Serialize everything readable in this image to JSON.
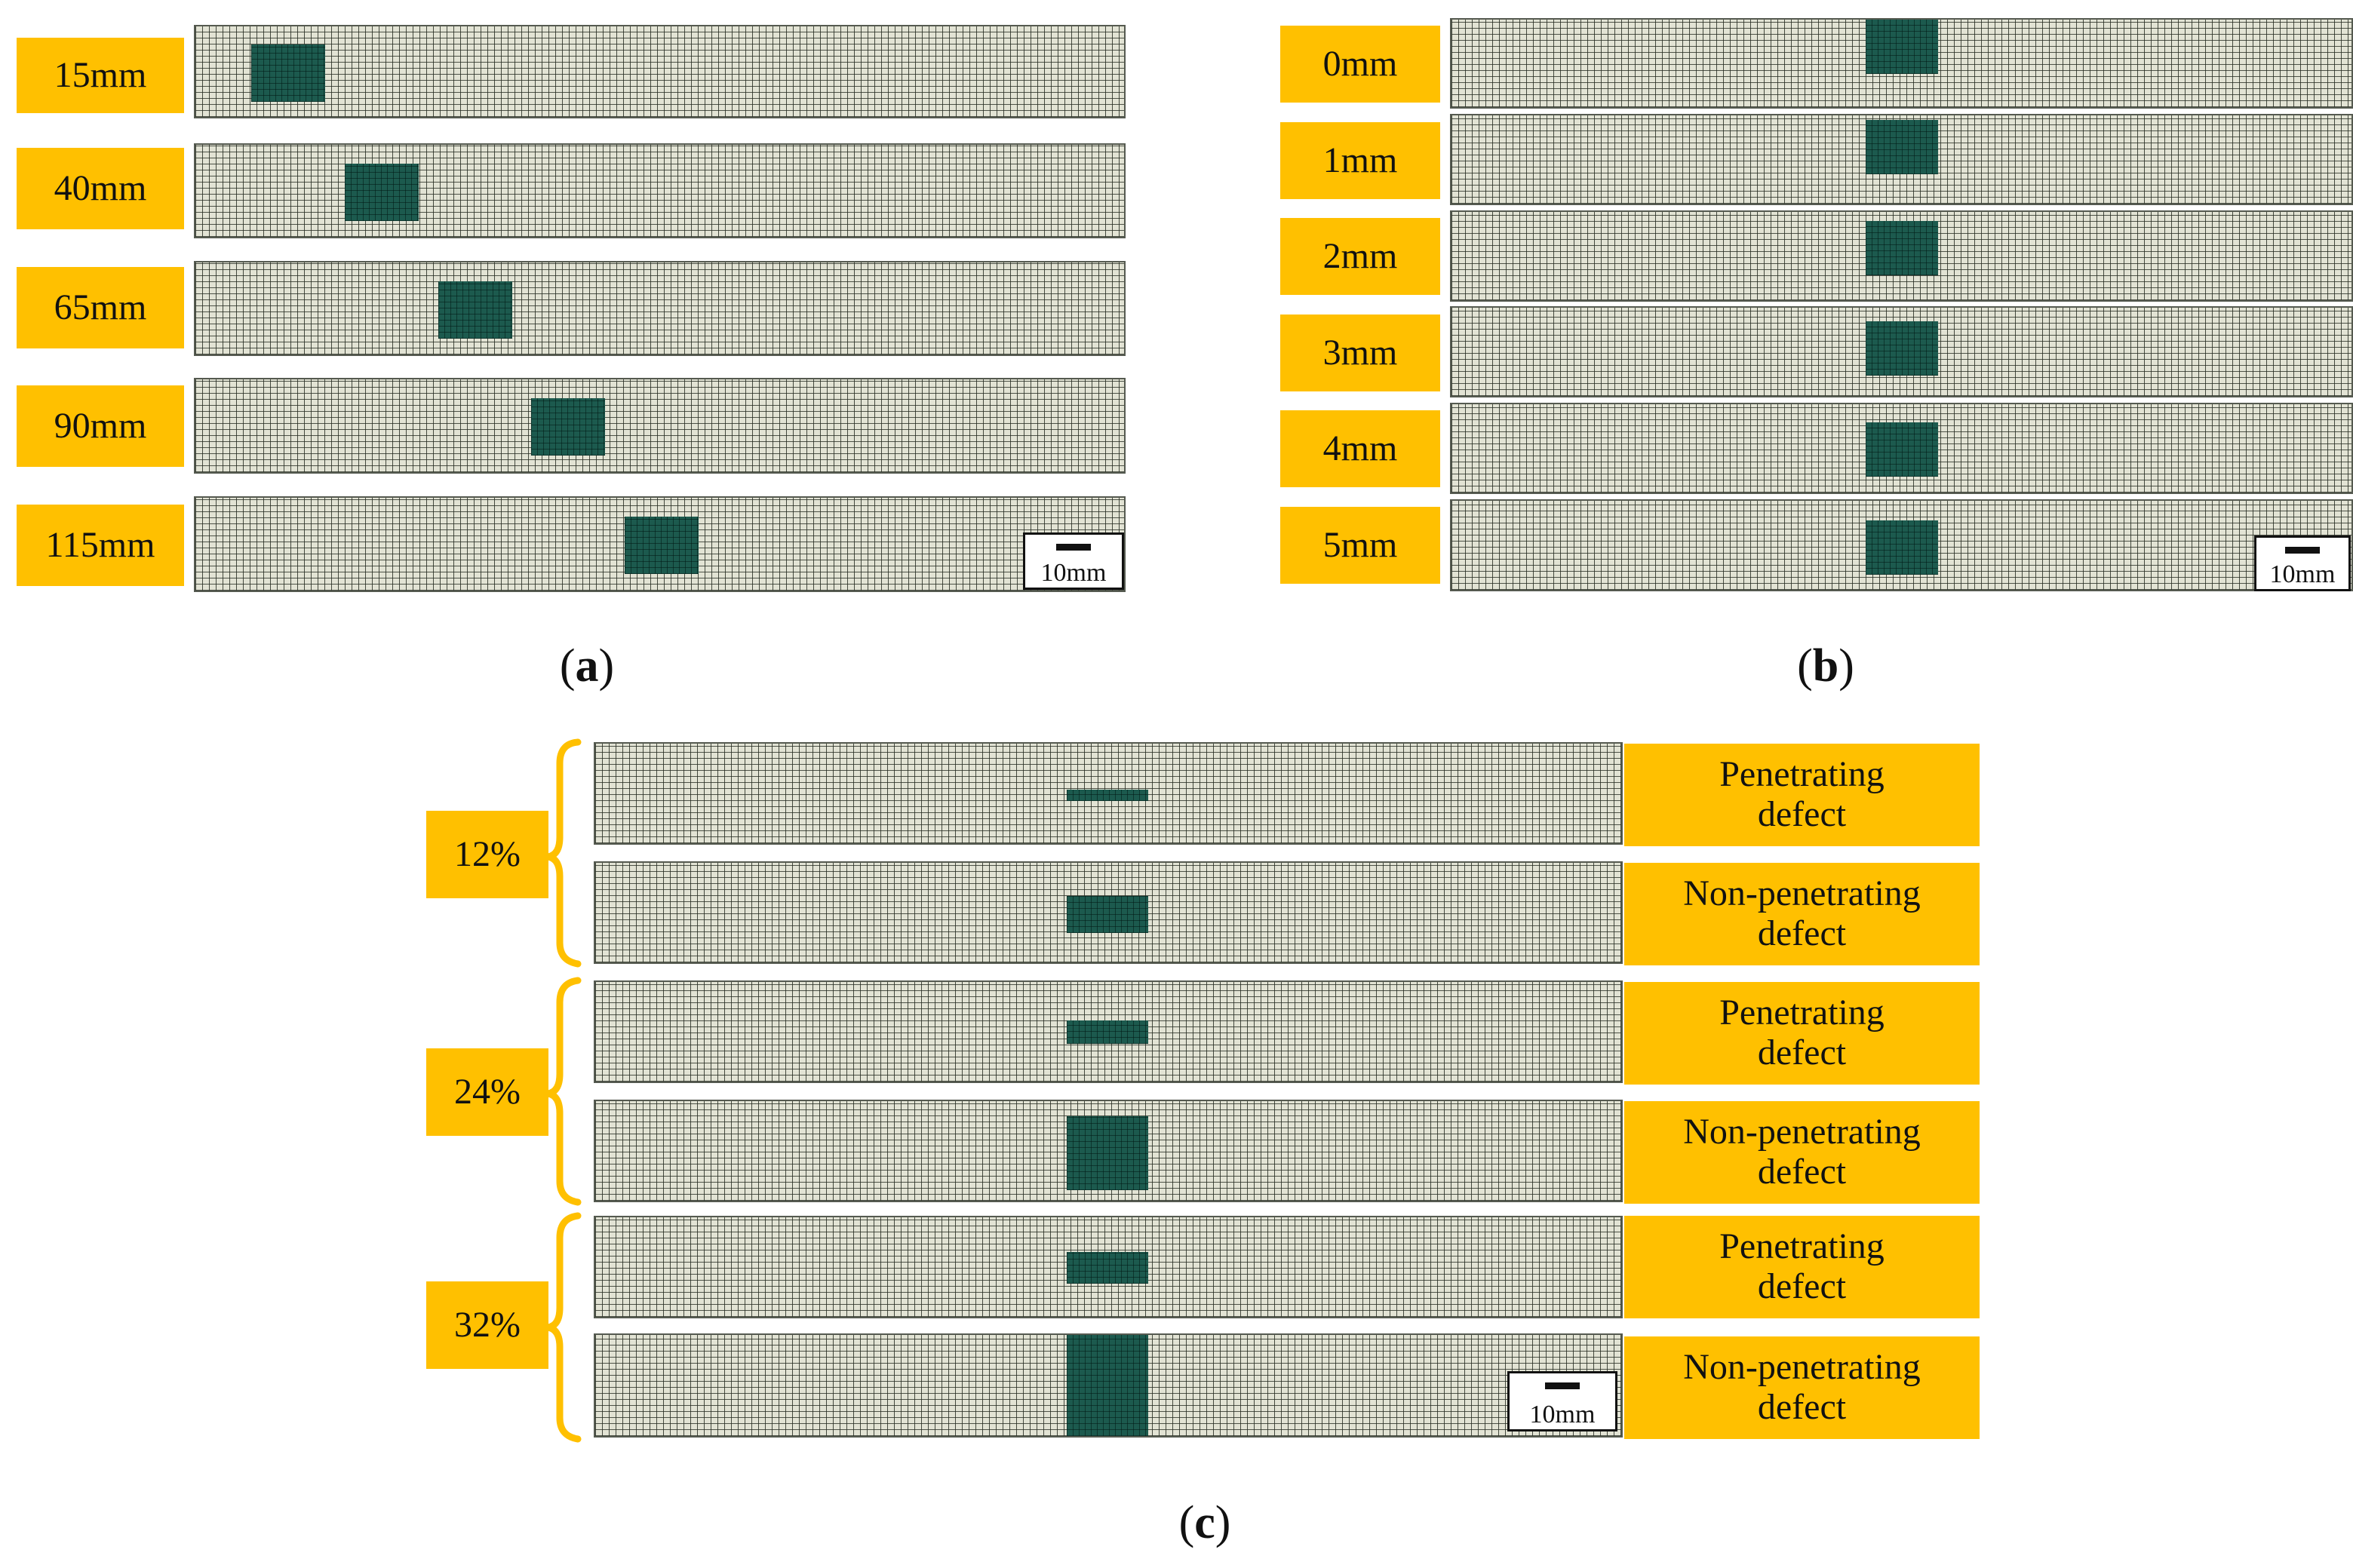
{
  "panel_a": {
    "label_open": "(",
    "label_letter": "a",
    "label_close": ")",
    "rows": [
      "15mm",
      "40mm",
      "65mm",
      "90mm",
      "115mm"
    ],
    "scale_bar": "10mm"
  },
  "panel_b": {
    "label_open": "(",
    "label_letter": "b",
    "label_close": ")",
    "rows": [
      "0mm",
      "1mm",
      "2mm",
      "3mm",
      "4mm",
      "5mm"
    ],
    "scale_bar": "10mm"
  },
  "panel_c": {
    "label_open": "(",
    "label_letter": "c",
    "label_close": ")",
    "groups": [
      {
        "ratio": "12%",
        "rows": [
          {
            "type_line1": "Penetrating",
            "type_line2": "defect"
          },
          {
            "type_line1": "Non-penetrating",
            "type_line2": "defect"
          }
        ]
      },
      {
        "ratio": "24%",
        "rows": [
          {
            "type_line1": "Penetrating",
            "type_line2": "defect"
          },
          {
            "type_line1": "Non-penetrating",
            "type_line2": "defect"
          }
        ]
      },
      {
        "ratio": "32%",
        "rows": [
          {
            "type_line1": "Penetrating",
            "type_line2": "defect"
          },
          {
            "type_line1": "Non-penetrating",
            "type_line2": "defect"
          }
        ]
      }
    ],
    "scale_bar": "10mm"
  },
  "colors": {
    "label_bg": "#ffc000",
    "defect": "#1c5a4e",
    "mesh": "#e2e3d4",
    "brace": "#ffc000"
  }
}
